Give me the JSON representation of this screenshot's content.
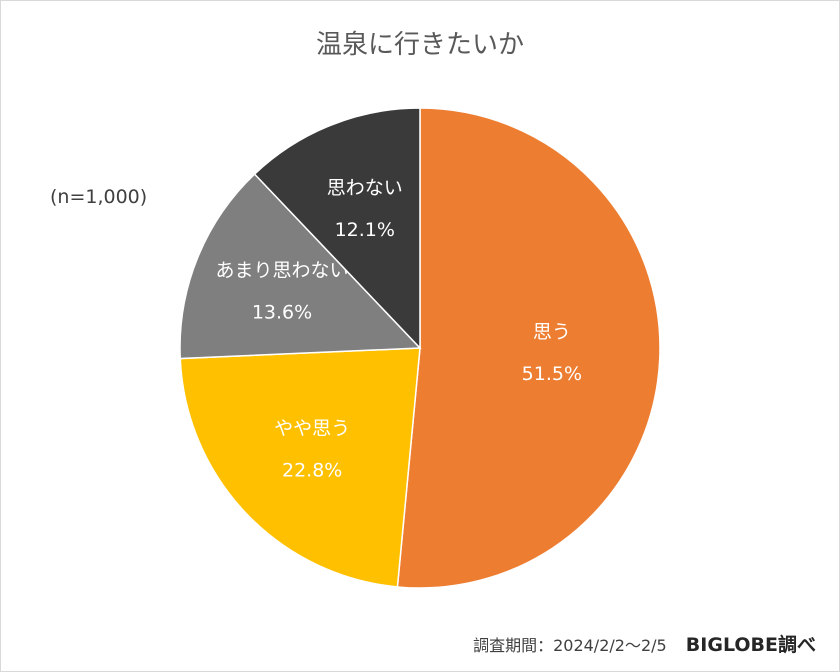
{
  "chart_data": {
    "type": "pie",
    "title": "温泉に行きたいか",
    "sample_note": "(n=1,000)",
    "start_angle_deg": 0,
    "direction": "clockwise",
    "slices": [
      {
        "label": "思う",
        "value": 51.5,
        "value_label": "51.5%",
        "color": "#ED7D31"
      },
      {
        "label": "やや思う",
        "value": 22.8,
        "value_label": "22.8%",
        "color": "#FFC000"
      },
      {
        "label": "あまり思わない",
        "value": 13.6,
        "value_label": "13.6%",
        "color": "#7F7F7F"
      },
      {
        "label": "思わない",
        "value": 12.1,
        "value_label": "12.1%",
        "color": "#3A3A3A"
      }
    ]
  },
  "footer": {
    "survey_period": "調査期間：2024/2/2〜2/5",
    "source": "BIGLOBE調べ"
  }
}
